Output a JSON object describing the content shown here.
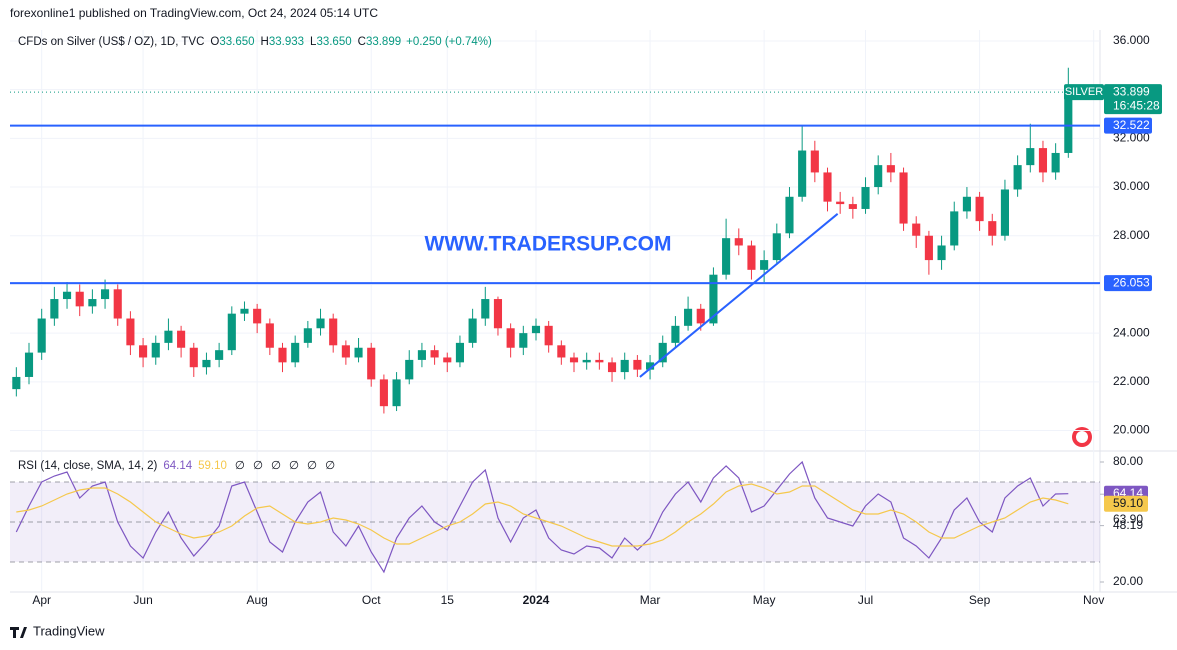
{
  "publisher": "forexonline1 published on TradingView.com, Oct 24, 2024 05:14 UTC",
  "footer": "TradingView",
  "chart_data": [
    {
      "type": "candlestick",
      "title": "CFDs on Silver (US$ / OZ), 1D, TVC",
      "header_fields": [
        {
          "key": "O",
          "value": "33.650"
        },
        {
          "key": "H",
          "value": "33.933"
        },
        {
          "key": "L",
          "value": "33.650"
        },
        {
          "key": "C",
          "value": "33.899"
        }
      ],
      "change": "+0.250 (+0.74%)",
      "watermark": "WWW.TRADERSUP.COM",
      "up_color": "#089981",
      "down_color": "#f23645",
      "grid": true,
      "categories": [
        null,
        null,
        "Apr",
        null,
        null,
        null,
        null,
        null,
        null,
        null,
        "Jun",
        null,
        null,
        null,
        null,
        null,
        null,
        null,
        null,
        "Aug",
        null,
        null,
        null,
        null,
        null,
        null,
        null,
        null,
        "Oct",
        null,
        null,
        null,
        null,
        null,
        "15",
        null,
        null,
        null,
        null,
        null,
        null,
        "2024",
        null,
        null,
        null,
        null,
        null,
        null,
        null,
        null,
        "Mar",
        null,
        null,
        null,
        null,
        null,
        null,
        null,
        null,
        "May",
        null,
        null,
        null,
        null,
        null,
        null,
        null,
        "Jul",
        null,
        null,
        null,
        null,
        null,
        null,
        null,
        null,
        "Sep",
        null,
        null,
        null,
        null,
        null,
        null,
        null,
        null,
        "Nov"
      ],
      "open": [
        21.7,
        22.2,
        23.2,
        24.6,
        25.4,
        25.7,
        25.1,
        25.4,
        25.8,
        24.6,
        23.5,
        23.0,
        23.6,
        24.1,
        23.4,
        22.6,
        22.9,
        23.3,
        24.8,
        25.0,
        24.4,
        23.4,
        22.8,
        23.6,
        24.2,
        24.6,
        23.5,
        23.0,
        23.4,
        22.1,
        21.0,
        22.1,
        22.9,
        23.3,
        23.0,
        22.8,
        23.6,
        24.6,
        25.4,
        24.2,
        23.4,
        24.0,
        24.3,
        23.5,
        23.0,
        22.8,
        22.9,
        22.8,
        22.4,
        22.9,
        22.5,
        22.8,
        23.6,
        24.3,
        25.0,
        24.4,
        26.4,
        27.9,
        27.6,
        26.6,
        27.0,
        28.1,
        29.6,
        31.5,
        30.6,
        29.4,
        29.3,
        29.1,
        30.0,
        30.9,
        30.6,
        28.5,
        28.0,
        27.0,
        27.6,
        29.0,
        29.6,
        28.6,
        28.0,
        29.9,
        30.9,
        31.6,
        30.6,
        31.4,
        null,
        null
      ],
      "high": [
        22.6,
        23.6,
        25.0,
        25.9,
        26.1,
        26.0,
        25.8,
        26.2,
        26.0,
        24.9,
        23.8,
        23.9,
        24.6,
        24.3,
        23.6,
        23.2,
        23.6,
        25.1,
        25.3,
        25.2,
        24.6,
        23.6,
        23.9,
        24.5,
        25.0,
        24.8,
        23.7,
        23.8,
        23.6,
        22.3,
        22.4,
        23.3,
        23.6,
        23.5,
        23.2,
        23.9,
        25.0,
        25.9,
        25.5,
        24.4,
        24.3,
        24.6,
        24.5,
        23.7,
        23.2,
        23.2,
        23.2,
        23.0,
        23.2,
        23.1,
        23.1,
        23.9,
        24.7,
        25.5,
        25.2,
        26.7,
        28.7,
        28.3,
        27.8,
        27.4,
        28.5,
        30.0,
        32.5,
        31.9,
        30.8,
        29.8,
        29.6,
        30.4,
        31.3,
        31.4,
        30.8,
        28.8,
        28.2,
        28.0,
        29.4,
        30.0,
        29.8,
        28.9,
        30.3,
        31.3,
        32.6,
        31.9,
        31.8,
        34.9,
        null,
        null
      ],
      "low": [
        21.4,
        21.9,
        22.9,
        24.3,
        25.0,
        24.7,
        24.8,
        25.0,
        24.3,
        23.1,
        22.6,
        22.7,
        23.3,
        23.0,
        22.2,
        22.3,
        22.6,
        23.1,
        24.5,
        24.0,
        23.1,
        22.4,
        22.6,
        23.4,
        23.9,
        23.2,
        22.7,
        22.8,
        21.8,
        20.7,
        20.8,
        21.9,
        22.6,
        22.7,
        22.4,
        22.6,
        23.4,
        24.3,
        23.9,
        23.0,
        23.1,
        23.7,
        23.2,
        22.7,
        22.4,
        22.5,
        22.5,
        22.0,
        22.1,
        22.2,
        22.1,
        22.6,
        23.4,
        24.1,
        24.1,
        24.3,
        26.2,
        27.2,
        26.2,
        26.1,
        26.8,
        27.9,
        29.4,
        30.2,
        29.0,
        28.9,
        28.7,
        28.9,
        29.7,
        30.2,
        28.2,
        27.5,
        26.4,
        26.6,
        27.4,
        28.7,
        28.2,
        27.6,
        27.8,
        29.6,
        30.6,
        30.2,
        30.3,
        31.2,
        null,
        null
      ],
      "close": [
        22.2,
        23.2,
        24.6,
        25.4,
        25.7,
        25.1,
        25.4,
        25.8,
        24.6,
        23.5,
        23.0,
        23.6,
        24.1,
        23.4,
        22.6,
        22.9,
        23.3,
        24.8,
        25.0,
        24.4,
        23.4,
        22.8,
        23.6,
        24.2,
        24.6,
        23.5,
        23.0,
        23.4,
        22.1,
        21.0,
        22.1,
        22.9,
        23.3,
        23.0,
        22.8,
        23.6,
        24.6,
        25.4,
        24.2,
        23.4,
        24.0,
        24.3,
        23.5,
        23.0,
        22.8,
        22.9,
        22.8,
        22.4,
        22.9,
        22.5,
        22.8,
        23.6,
        24.3,
        25.0,
        24.4,
        26.4,
        27.9,
        27.6,
        26.6,
        27.0,
        28.1,
        29.6,
        31.5,
        30.6,
        29.4,
        29.3,
        29.1,
        30.0,
        30.9,
        30.6,
        28.5,
        28.0,
        27.0,
        27.6,
        29.0,
        29.6,
        28.6,
        28.0,
        29.9,
        30.9,
        31.6,
        30.6,
        31.4,
        33.899,
        null,
        null
      ],
      "ylim": [
        19.2,
        36.45
      ],
      "yticks": [
        {
          "value": 20,
          "label": "20.000"
        },
        {
          "value": 22,
          "label": "22.000"
        },
        {
          "value": 24,
          "label": "24.000"
        },
        {
          "value": 26,
          "label": "26.000"
        },
        {
          "value": 28,
          "label": "28.000"
        },
        {
          "value": 30,
          "label": "30.000"
        },
        {
          "value": 32,
          "label": "32.000"
        },
        {
          "value": 34,
          "label": "34.000"
        },
        {
          "value": 36,
          "label": "36.000"
        }
      ],
      "hlines": [
        {
          "value": 32.522,
          "label": "32.522",
          "color": "#2962ff"
        },
        {
          "value": 26.053,
          "label": "26.053",
          "color": "#2962ff"
        }
      ],
      "trendline": {
        "values": [
          22.2,
          28.9
        ],
        "color": "#2962ff"
      },
      "last_price": {
        "value": 33.899,
        "label": "33.899",
        "symbol": "SILVER",
        "countdown": "16:45:28",
        "color": "#089981"
      }
    },
    {
      "type": "line",
      "title": "RSI (14, close, SMA, 14, 2)",
      "na_markers": [
        "∅",
        "∅",
        "∅",
        "∅",
        "∅",
        "∅"
      ],
      "series": [
        {
          "color": "#7e57c2",
          "last_label": "64.14",
          "values": [
            45,
            58,
            70,
            73,
            75,
            62,
            68,
            70,
            50,
            38,
            32,
            45,
            55,
            42,
            33,
            40,
            48,
            68,
            70,
            55,
            40,
            35,
            50,
            60,
            65,
            45,
            38,
            48,
            35,
            25,
            42,
            52,
            58,
            50,
            46,
            58,
            70,
            76,
            52,
            40,
            52,
            56,
            42,
            36,
            34,
            38,
            37,
            32,
            42,
            36,
            42,
            55,
            64,
            70,
            60,
            72,
            78,
            72,
            55,
            58,
            66,
            74,
            80,
            62,
            52,
            50,
            48,
            58,
            64,
            60,
            42,
            38,
            32,
            42,
            56,
            62,
            50,
            45,
            62,
            68,
            72,
            58,
            64,
            64.14,
            null,
            null
          ]
        },
        {
          "color": "#f5c84c",
          "last_label": "59.10",
          "values": [
            55,
            56,
            58,
            61,
            64,
            66,
            67,
            67,
            64,
            60,
            55,
            50,
            47,
            44,
            42,
            43,
            45,
            48,
            53,
            57,
            58,
            54,
            50,
            49,
            50,
            52,
            51,
            49,
            46,
            42,
            39,
            39,
            42,
            45,
            48,
            50,
            54,
            59,
            60,
            58,
            54,
            52,
            50,
            48,
            45,
            42,
            40,
            38,
            38,
            38,
            39,
            41,
            45,
            50,
            54,
            59,
            65,
            68,
            69,
            67,
            64,
            65,
            68,
            68,
            64,
            60,
            56,
            54,
            54,
            56,
            54,
            50,
            45,
            42,
            42,
            45,
            48,
            50,
            52,
            56,
            60,
            62,
            61,
            59.1,
            null,
            null
          ]
        }
      ],
      "ylim": [
        15,
        85
      ],
      "yticks": [
        {
          "value": 80,
          "label": "80.00"
        },
        {
          "value": 63.9,
          "label": "63.90"
        },
        {
          "value": 48.19,
          "label": "48.19"
        },
        {
          "value": 20,
          "label": "20.00"
        }
      ],
      "bands": [
        70,
        50,
        30
      ],
      "band_fill": "rgba(126,87,194,0.10)"
    }
  ]
}
